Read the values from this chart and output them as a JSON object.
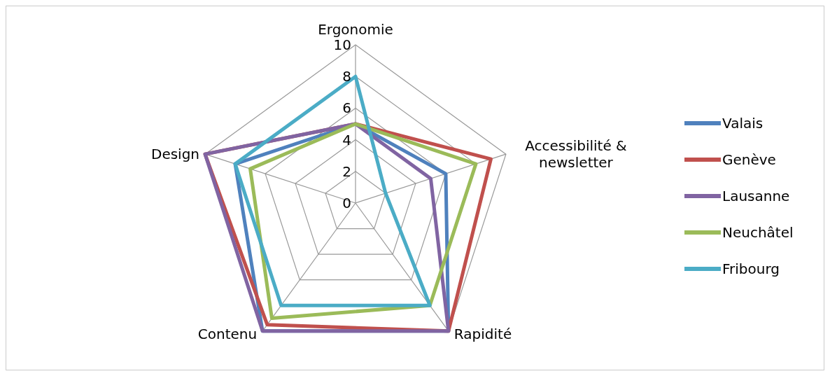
{
  "chart_data": {
    "type": "radar",
    "categories": [
      "Ergonomie",
      "Accessibilité & newsletter",
      "Rapidité",
      "Contenu",
      "Design"
    ],
    "series": [
      {
        "name": "Valais",
        "color": "#4f81bd",
        "values": [
          5,
          6,
          10,
          10,
          8
        ]
      },
      {
        "name": "Genève",
        "color": "#c0504d",
        "values": [
          5,
          9,
          10,
          9.5,
          10
        ]
      },
      {
        "name": "Lausanne",
        "color": "#8064a2",
        "values": [
          5,
          5,
          10,
          10,
          10
        ]
      },
      {
        "name": "Neuchâtel",
        "color": "#9bbb59",
        "values": [
          5,
          8,
          8,
          9,
          7
        ]
      },
      {
        "name": "Fribourg",
        "color": "#4bacc6",
        "values": [
          8,
          2,
          8,
          8,
          8
        ]
      }
    ],
    "ylim": [
      0,
      10
    ],
    "yticks": [
      0,
      2,
      4,
      6,
      8,
      10
    ],
    "grid": true,
    "legend": "right",
    "marker": "none"
  }
}
